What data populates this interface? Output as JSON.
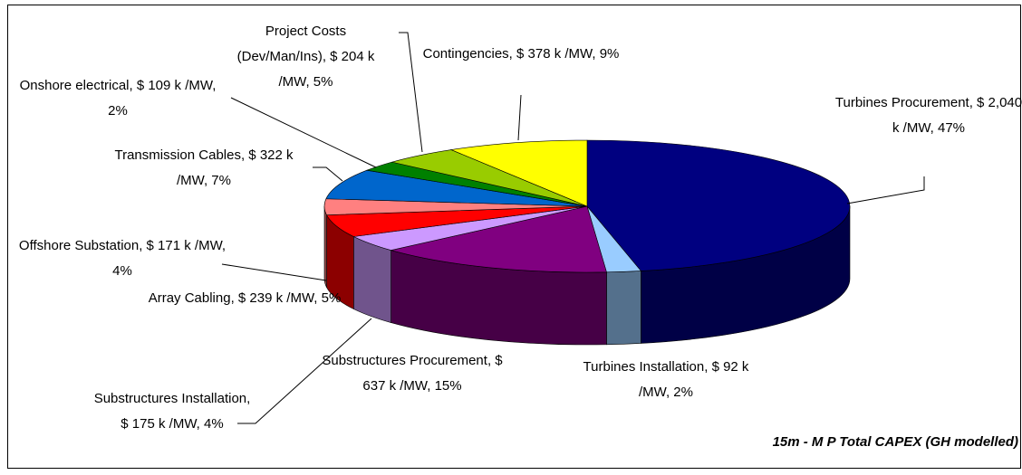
{
  "chart_data": {
    "type": "pie3d",
    "title": "15m - M P Total CAPEX (GH modelled)",
    "categories": [
      "Turbines Procurement",
      "Turbines Installation",
      "Substructures Procurement",
      "Substructures Installation",
      "Array Cabling",
      "Offshore Substation",
      "Transmission Cables",
      "Onshore electrical",
      "Project Costs (Dev/Man/Ins)",
      "Contingencies"
    ],
    "values": [
      2040,
      92,
      637,
      175,
      239,
      171,
      322,
      109,
      204,
      378
    ],
    "value_labels": [
      "Turbines Procurement, $ 2,040 k /MW, 47%",
      "Turbines Installation, $ 92 k /MW, 2%",
      "Substructures Procurement, $ 637 k /MW, 15%",
      "Substructures Installation, $ 175 k /MW, 4%",
      "Array Cabling, $ 239 k /MW, 5%",
      "Offshore Substation, $ 171 k /MW, 4%",
      "Transmission Cables, $ 322 k /MW, 7%",
      "Onshore electrical, $ 109 k /MW, 2%",
      "Project Costs (Dev/Man/Ins), $ 204 k /MW, 5%",
      "Contingencies, $ 378 k /MW, 9%"
    ],
    "colors": [
      "#000080",
      "#99ccff",
      "#800080",
      "#cc99ff",
      "#ff0000",
      "#ff8080",
      "#0066cc",
      "#008000",
      "#99cc00",
      "#ffff00"
    ]
  }
}
